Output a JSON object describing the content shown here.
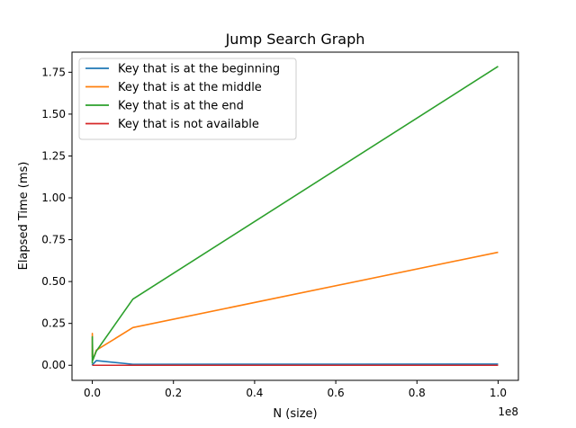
{
  "chart_data": {
    "type": "line",
    "title": "Jump Search Graph",
    "xlabel": "N (size)",
    "ylabel": "Elapsed Time (ms)",
    "x_offset_label": "1e8",
    "xlim": [
      -0.05,
      1.05
    ],
    "ylim": [
      -0.09,
      1.87
    ],
    "x_unit_multiplier": 100000000,
    "xticks": [
      0.0,
      0.2,
      0.4,
      0.6,
      0.8,
      1.0
    ],
    "xtick_labels": [
      "0.0",
      "0.2",
      "0.4",
      "0.6",
      "0.8",
      "1.0"
    ],
    "yticks": [
      0.0,
      0.25,
      0.5,
      0.75,
      1.0,
      1.25,
      1.5,
      1.75
    ],
    "ytick_labels": [
      "0.00",
      "0.25",
      "0.50",
      "0.75",
      "1.00",
      "1.25",
      "1.50",
      "1.75"
    ],
    "grid": false,
    "legend_position": "upper-left",
    "x": [
      1e-05,
      0.0001,
      0.001,
      0.01,
      0.1,
      1.0
    ],
    "series": [
      {
        "name": "Key that is at the beginning",
        "color": "#1f77b4",
        "values": [
          0.0,
          0.003,
          0.005,
          0.028,
          0.006,
          0.007
        ]
      },
      {
        "name": "Key that is at the middle",
        "color": "#ff7f0e",
        "values": [
          0.05,
          0.19,
          0.03,
          0.09,
          0.225,
          0.675
        ]
      },
      {
        "name": "Key that is at the end",
        "color": "#2ca02c",
        "values": [
          0.01,
          0.17,
          0.03,
          0.085,
          0.395,
          1.785
        ]
      },
      {
        "name": "Key that is not available",
        "color": "#d62728",
        "values": [
          0.0,
          0.0,
          0.0,
          0.0,
          0.0,
          0.0
        ]
      }
    ]
  }
}
